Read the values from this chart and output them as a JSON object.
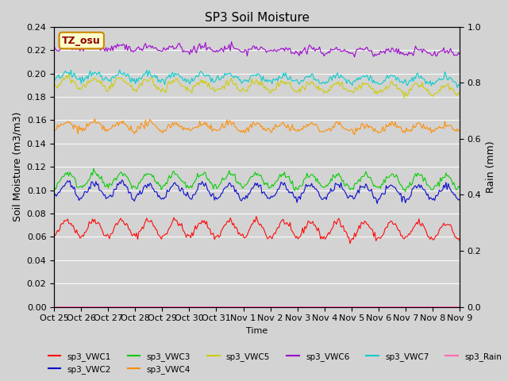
{
  "title": "SP3 Soil Moisture",
  "xlabel": "Time",
  "ylabel_left": "Soil Moisture (m3/m3)",
  "ylabel_right": "Rain (mm)",
  "ylim_left": [
    0.0,
    0.24
  ],
  "ylim_right": [
    0.0,
    1.0
  ],
  "tz_label": "TZ_osu",
  "bg_color": "#d3d3d3",
  "line_colors": {
    "sp3_VWC1": "#ff0000",
    "sp3_VWC2": "#0000cc",
    "sp3_VWC3": "#00cc00",
    "sp3_VWC4": "#ff8c00",
    "sp3_VWC5": "#cccc00",
    "sp3_VWC6": "#9900cc",
    "sp3_VWC7": "#00cccc",
    "sp3_Rain": "#ff69b4"
  },
  "x_tick_labels": [
    "Oct 25",
    "Oct 26",
    "Oct 27",
    "Oct 28",
    "Oct 29",
    "Oct 30",
    "Oct 31",
    "Nov 1",
    "Nov 2",
    "Nov 3",
    "Nov 4",
    "Nov 5",
    "Nov 6",
    "Nov 7",
    "Nov 8",
    "Nov 9"
  ],
  "num_days": 15,
  "series_params": {
    "sp3_VWC1": {
      "base": 0.068,
      "amp": 0.007,
      "phase": 1.5,
      "trend": -0.003
    },
    "sp3_VWC2": {
      "base": 0.1,
      "amp": 0.006,
      "phase": 1.5,
      "trend": -0.002
    },
    "sp3_VWC3": {
      "base": 0.109,
      "amp": 0.006,
      "phase": 1.5,
      "trend": -0.002
    },
    "sp3_VWC4": {
      "base": 0.155,
      "amp": 0.003,
      "phase": 1.5,
      "trend": -0.002
    },
    "sp3_VWC5": {
      "base": 0.192,
      "amp": 0.004,
      "phase": 1.5,
      "trend": -0.006
    },
    "sp3_VWC6": {
      "base": 0.223,
      "amp": 0.002,
      "phase": 1.5,
      "trend": -0.005
    },
    "sp3_VWC7": {
      "base": 0.198,
      "amp": 0.003,
      "phase": 1.5,
      "trend": -0.004
    }
  }
}
